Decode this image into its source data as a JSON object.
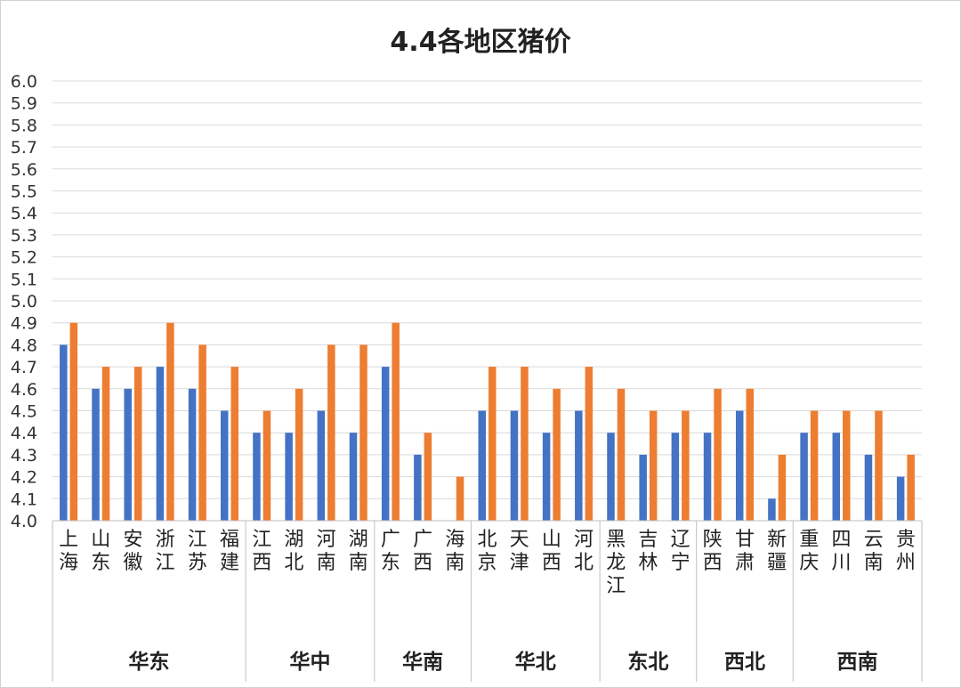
{
  "chart_data": {
    "type": "bar",
    "title": "4.4各地区猪价",
    "xlabel": "",
    "ylabel": "",
    "ylim": [
      4.0,
      6.0
    ],
    "y_ticks": [
      "4.0",
      "4.1",
      "4.2",
      "4.3",
      "4.4",
      "4.5",
      "4.6",
      "4.7",
      "4.8",
      "4.9",
      "5.0",
      "5.1",
      "5.2",
      "5.3",
      "5.4",
      "5.5",
      "5.6",
      "5.7",
      "5.8",
      "5.9",
      "6.0"
    ],
    "grid": true,
    "legend": "none",
    "colors": [
      "#4472c4",
      "#ed7d31"
    ],
    "categories": [
      "上海",
      "山东",
      "安徽",
      "浙江",
      "江苏",
      "福建",
      "江西",
      "湖北",
      "河南",
      "湖南",
      "广东",
      "广西",
      "海南",
      "北京",
      "天津",
      "山西",
      "河北",
      "黑龙江",
      "吉林",
      "辽宁",
      "陕西",
      "甘肃",
      "新疆",
      "重庆",
      "四川",
      "云南",
      "贵州"
    ],
    "groups": [
      {
        "label": "华东",
        "count": 6
      },
      {
        "label": "华中",
        "count": 4
      },
      {
        "label": "华南",
        "count": 3
      },
      {
        "label": "华北",
        "count": 4
      },
      {
        "label": "东北",
        "count": 3
      },
      {
        "label": "西北",
        "count": 3
      },
      {
        "label": "西南",
        "count": 4
      }
    ],
    "series": [
      {
        "values": [
          4.8,
          4.6,
          4.6,
          4.7,
          4.6,
          4.5,
          4.4,
          4.4,
          4.5,
          4.4,
          4.7,
          4.3,
          null,
          4.5,
          4.5,
          4.4,
          4.5,
          4.4,
          4.3,
          4.4,
          4.4,
          4.5,
          4.1,
          4.4,
          4.4,
          4.3,
          4.2
        ]
      },
      {
        "values": [
          4.9,
          4.7,
          4.7,
          4.9,
          4.8,
          4.7,
          4.5,
          4.6,
          4.8,
          4.8,
          4.9,
          4.4,
          4.2,
          4.7,
          4.7,
          4.6,
          4.7,
          4.6,
          4.5,
          4.5,
          4.6,
          4.6,
          4.3,
          4.5,
          4.5,
          4.5,
          4.3
        ]
      }
    ]
  }
}
